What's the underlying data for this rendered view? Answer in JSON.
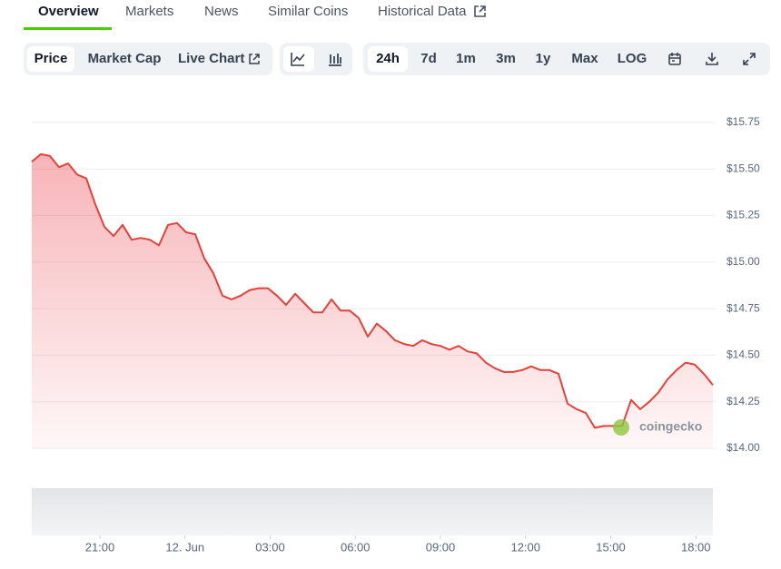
{
  "tabs": [
    "Overview",
    "Markets",
    "News",
    "Similar Coins",
    "Historical Data"
  ],
  "chart_modes": [
    "Price",
    "Market Cap",
    "Live Chart"
  ],
  "ranges": [
    "24h",
    "7d",
    "1m",
    "3m",
    "1y",
    "Max",
    "LOG"
  ],
  "chart_data": {
    "type": "area",
    "annotations": [
      "coingecko"
    ],
    "color": "#e5413a",
    "x": [
      18.6,
      18.92,
      19.24,
      19.56,
      19.88,
      20.2,
      20.52,
      20.84,
      21.16,
      21.48,
      21.8,
      22.12,
      22.44,
      22.76,
      23.08,
      23.4,
      23.72,
      24.04,
      24.36,
      24.68,
      25,
      25.32,
      25.64,
      25.96,
      26.28,
      26.6,
      26.92,
      27.24,
      27.56,
      27.88,
      28.2,
      28.52,
      28.84,
      29.16,
      29.48,
      29.8,
      30.12,
      30.44,
      30.76,
      31.08,
      31.4,
      31.72,
      32.04,
      32.36,
      32.68,
      33,
      33.32,
      33.64,
      33.96,
      34.28,
      34.6,
      34.92,
      35.24,
      35.56,
      35.88,
      36.2,
      36.52,
      36.84,
      37.16,
      37.48,
      37.8,
      38.12,
      38.44,
      38.76,
      39.08,
      39.4,
      39.72,
      40.04,
      40.36,
      40.68,
      41,
      41.32,
      41.64,
      41.96,
      42.28,
      42.6
    ],
    "values": [
      15.54,
      15.58,
      15.57,
      15.51,
      15.53,
      15.47,
      15.45,
      15.31,
      15.19,
      15.14,
      15.2,
      15.12,
      15.13,
      15.12,
      15.09,
      15.2,
      15.21,
      15.16,
      15.15,
      15.02,
      14.94,
      14.82,
      14.8,
      14.82,
      14.85,
      14.86,
      14.86,
      14.82,
      14.77,
      14.83,
      14.78,
      14.73,
      14.73,
      14.8,
      14.74,
      14.74,
      14.7,
      14.6,
      14.67,
      14.63,
      14.58,
      14.56,
      14.55,
      14.58,
      14.56,
      14.55,
      14.53,
      14.55,
      14.52,
      14.51,
      14.46,
      14.43,
      14.41,
      14.41,
      14.42,
      14.44,
      14.42,
      14.42,
      14.4,
      14.24,
      14.21,
      14.19,
      14.11,
      14.12,
      14.12,
      14.12,
      14.26,
      14.21,
      14.25,
      14.3,
      14.37,
      14.42,
      14.46,
      14.45,
      14.4,
      14.34
    ],
    "xlim": [
      18.6,
      42.6
    ],
    "xticks": [
      {
        "value": 21,
        "label": "21:00"
      },
      {
        "value": 24,
        "label": "12. Jun"
      },
      {
        "value": 27,
        "label": "03:00"
      },
      {
        "value": 30,
        "label": "06:00"
      },
      {
        "value": 33,
        "label": "09:00"
      },
      {
        "value": 36,
        "label": "12:00"
      },
      {
        "value": 39,
        "label": "15:00"
      },
      {
        "value": 42,
        "label": "18:00"
      }
    ],
    "ylim": [
      14,
      15.75
    ],
    "yticks": [
      {
        "value": 15.75,
        "label": "$15.75"
      },
      {
        "value": 15.5,
        "label": "$15.50"
      },
      {
        "value": 15.25,
        "label": "$15.25"
      },
      {
        "value": 15,
        "label": "$15.00"
      },
      {
        "value": 14.75,
        "label": "$14.75"
      },
      {
        "value": 14.5,
        "label": "$14.50"
      },
      {
        "value": 14.25,
        "label": "$14.25"
      },
      {
        "value": 14,
        "label": "$14.00"
      }
    ],
    "grid": true
  }
}
